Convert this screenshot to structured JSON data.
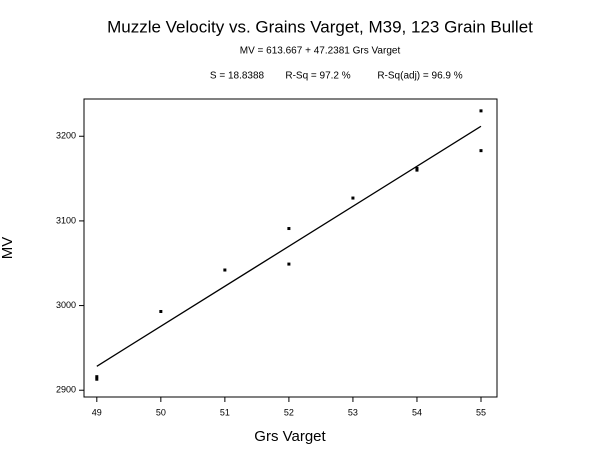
{
  "chart_data": {
    "type": "scatter",
    "title": "Muzzle Velocity vs. Grains Varget, M39, 123 Grain Bullet",
    "subtitle": "MV = 613.667 + 47.2381 Grs Varget",
    "stats": [
      "S = 18.8388",
      "R-Sq = 97.2 %",
      "R-Sq(adj) = 96.9 %"
    ],
    "xlabel": "Grs Varget",
    "ylabel": "MV",
    "series": [
      {
        "color": "#000000",
        "x": [
          49,
          49,
          50,
          51,
          52,
          52,
          53,
          54,
          54,
          55,
          55
        ],
        "values": [
          2913,
          2916,
          2993,
          3042,
          3091,
          3049,
          3127,
          3160,
          3162,
          3230,
          3183
        ]
      }
    ],
    "fit_line": {
      "color": "#000000",
      "x": [
        49,
        55
      ],
      "values": [
        2928.3,
        3211.8
      ]
    },
    "xlim": [
      48.8,
      55.25
    ],
    "ylim": [
      2892,
      3244
    ],
    "xticks": [
      49,
      50,
      51,
      52,
      53,
      54,
      55
    ],
    "yticks": [
      2900,
      3000,
      3100,
      3200
    ],
    "grid": false
  }
}
